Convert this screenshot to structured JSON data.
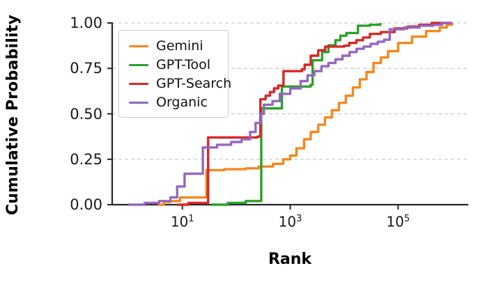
{
  "chart_data": {
    "type": "line",
    "subtype": "cdf-step",
    "title": "",
    "xlabel": "Rank",
    "ylabel": "Cumulative Probability",
    "x_scale": "log",
    "xlim": [
      0.5,
      2000000
    ],
    "ylim": [
      0,
      1
    ],
    "grid": "horizontal-dashed",
    "legend_position": "upper-left",
    "axis_color": "#262626",
    "grid_color": "#cccccc",
    "x_ticks": [
      {
        "value": 10,
        "base": "10",
        "exponent": "1"
      },
      {
        "value": 1000,
        "base": "10",
        "exponent": "3"
      },
      {
        "value": 100000,
        "base": "10",
        "exponent": "5"
      }
    ],
    "y_ticks": [
      {
        "value": 0.0,
        "label": "0.00"
      },
      {
        "value": 0.25,
        "label": "0.25"
      },
      {
        "value": 0.5,
        "label": "0.50"
      },
      {
        "value": 0.75,
        "label": "0.75"
      },
      {
        "value": 1.0,
        "label": "1.00"
      }
    ],
    "series": [
      {
        "name": "Gemini",
        "color": "#f5871e",
        "points": [
          [
            3.5,
            0
          ],
          [
            4.5,
            0.015
          ],
          [
            6,
            0.02
          ],
          [
            9,
            0.04
          ],
          [
            28,
            0.19
          ],
          [
            60,
            0.195
          ],
          [
            150,
            0.2
          ],
          [
            260,
            0.21
          ],
          [
            480,
            0.225
          ],
          [
            740,
            0.25
          ],
          [
            1000,
            0.27
          ],
          [
            1300,
            0.31
          ],
          [
            1800,
            0.36
          ],
          [
            2400,
            0.4
          ],
          [
            3300,
            0.44
          ],
          [
            4400,
            0.48
          ],
          [
            5900,
            0.52
          ],
          [
            8000,
            0.56
          ],
          [
            10700,
            0.6
          ],
          [
            14500,
            0.645
          ],
          [
            19500,
            0.69
          ],
          [
            26000,
            0.73
          ],
          [
            35000,
            0.78
          ],
          [
            48000,
            0.81
          ],
          [
            65000,
            0.845
          ],
          [
            100000,
            0.89
          ],
          [
            180000,
            0.925
          ],
          [
            330000,
            0.955
          ],
          [
            590000,
            0.975
          ],
          [
            800000,
            0.99
          ],
          [
            1000000,
            1.0
          ]
        ]
      },
      {
        "name": "GPT-Tool",
        "color": "#2ca02c",
        "points": [
          [
            35,
            0
          ],
          [
            70,
            0.01
          ],
          [
            150,
            0.02
          ],
          [
            290,
            0.53
          ],
          [
            700,
            0.65
          ],
          [
            2400,
            0.66
          ],
          [
            2600,
            0.795
          ],
          [
            3900,
            0.84
          ],
          [
            5100,
            0.877
          ],
          [
            6900,
            0.905
          ],
          [
            8500,
            0.93
          ],
          [
            11000,
            0.945
          ],
          [
            18000,
            0.985
          ],
          [
            30000,
            0.99
          ],
          [
            47000,
            1.0
          ]
        ]
      },
      {
        "name": "GPT-Search",
        "color": "#d62728",
        "points": [
          [
            8,
            0
          ],
          [
            13,
            0.01
          ],
          [
            30,
            0.37
          ],
          [
            250,
            0.375
          ],
          [
            280,
            0.58
          ],
          [
            350,
            0.6
          ],
          [
            420,
            0.62
          ],
          [
            500,
            0.64
          ],
          [
            600,
            0.655
          ],
          [
            750,
            0.735
          ],
          [
            1650,
            0.745
          ],
          [
            1850,
            0.77
          ],
          [
            2400,
            0.82
          ],
          [
            3300,
            0.85
          ],
          [
            4450,
            0.87
          ],
          [
            10000,
            0.875
          ],
          [
            12400,
            0.89
          ],
          [
            16800,
            0.905
          ],
          [
            22400,
            0.92
          ],
          [
            30000,
            0.94
          ],
          [
            48000,
            0.95
          ],
          [
            86000,
            0.97
          ],
          [
            150000,
            0.98
          ],
          [
            245000,
            0.99
          ],
          [
            420000,
            1.0
          ],
          [
            1000000,
            1.0
          ]
        ]
      },
      {
        "name": "Organic",
        "color": "#9467bd",
        "points": [
          [
            1,
            0
          ],
          [
            2,
            0.01
          ],
          [
            3.7,
            0.02
          ],
          [
            6,
            0.04
          ],
          [
            8,
            0.1
          ],
          [
            11,
            0.17
          ],
          [
            24,
            0.315
          ],
          [
            44,
            0.33
          ],
          [
            80,
            0.345
          ],
          [
            125,
            0.36
          ],
          [
            180,
            0.4
          ],
          [
            228,
            0.45
          ],
          [
            288,
            0.5
          ],
          [
            325,
            0.55
          ],
          [
            470,
            0.57
          ],
          [
            640,
            0.61
          ],
          [
            1000,
            0.64
          ],
          [
            1560,
            0.68
          ],
          [
            2100,
            0.712
          ],
          [
            2800,
            0.735
          ],
          [
            3800,
            0.762
          ],
          [
            5100,
            0.78
          ],
          [
            6900,
            0.8
          ],
          [
            9300,
            0.82
          ],
          [
            12600,
            0.84
          ],
          [
            17000,
            0.858
          ],
          [
            23000,
            0.87
          ],
          [
            31000,
            0.885
          ],
          [
            42000,
            0.897
          ],
          [
            55000,
            0.908
          ],
          [
            70000,
            0.965
          ],
          [
            130000,
            0.975
          ],
          [
            250000,
            0.985
          ],
          [
            450000,
            0.99
          ],
          [
            650000,
            1.0
          ],
          [
            1000000,
            1.0
          ]
        ]
      }
    ]
  }
}
